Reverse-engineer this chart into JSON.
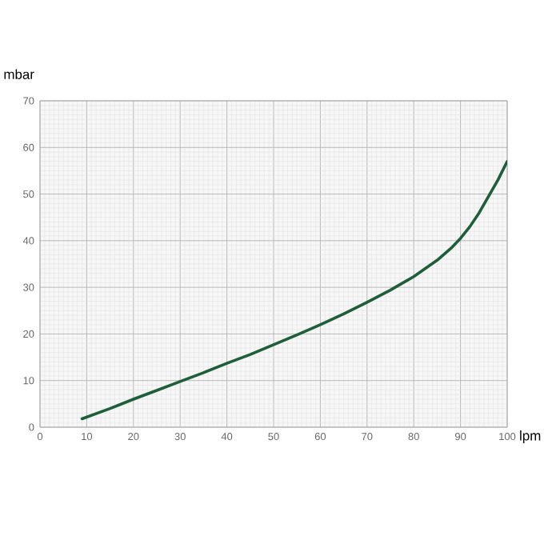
{
  "chart_data": {
    "type": "line",
    "xlabel": "lpm",
    "ylabel": "mbar",
    "xlim": [
      0,
      100
    ],
    "ylim": [
      0,
      70
    ],
    "xticks": [
      0,
      10,
      20,
      30,
      40,
      50,
      60,
      70,
      80,
      90,
      100
    ],
    "yticks": [
      0,
      10,
      20,
      30,
      40,
      50,
      60,
      70
    ],
    "grid": true,
    "marker": "none",
    "line_style": "solid",
    "series": [
      {
        "color": "#1e5e3a",
        "x": [
          9,
          15,
          20,
          25,
          30,
          35,
          40,
          45,
          50,
          55,
          60,
          65,
          70,
          75,
          80,
          85,
          88,
          90,
          92,
          94,
          96,
          98,
          100
        ],
        "values": [
          1.8,
          4,
          6,
          7.9,
          9.8,
          11.7,
          13.7,
          15.6,
          17.7,
          19.8,
          22,
          24.3,
          26.8,
          29.4,
          32.3,
          35.8,
          38.4,
          40.5,
          43,
          46,
          49.5,
          53,
          57
        ]
      }
    ]
  }
}
